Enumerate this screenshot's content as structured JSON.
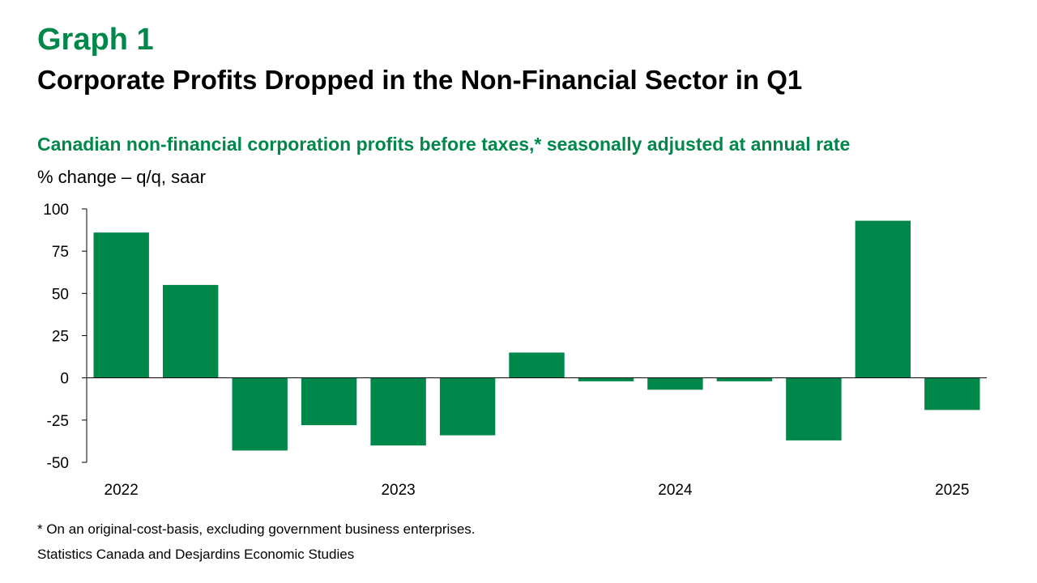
{
  "header": {
    "graph_label": "Graph 1",
    "title": "Corporate Profits Dropped in the Non-Financial Sector in Q1",
    "subtitle": "Canadian non-financial corporation profits before taxes,* seasonally adjusted at annual rate",
    "unit": "% change – q/q, saar"
  },
  "chart_data": {
    "type": "bar",
    "categories": [
      "2022 Q1",
      "2022 Q2",
      "2022 Q3",
      "2022 Q4",
      "2023 Q1",
      "2023 Q2",
      "2023 Q3",
      "2023 Q4",
      "2024 Q1",
      "2024 Q2",
      "2024 Q3",
      "2024 Q4",
      "2025 Q1"
    ],
    "values": [
      86,
      55,
      -43,
      -28,
      -40,
      -34,
      15,
      -2,
      -7,
      -2,
      -37,
      93,
      -19
    ],
    "x_tick_labels": [
      {
        "label": "2022",
        "category_index": 0
      },
      {
        "label": "2023",
        "category_index": 4
      },
      {
        "label": "2024",
        "category_index": 8
      },
      {
        "label": "2025",
        "category_index": 12
      }
    ],
    "ylim": [
      -50,
      100
    ],
    "yticks": [
      100,
      75,
      50,
      25,
      0,
      -25,
      -50
    ],
    "ytick_labels": [
      "100",
      "75",
      "50",
      "25",
      "0",
      "-25",
      "-50"
    ],
    "bar_color": "#00874a",
    "grid": false
  },
  "footer": {
    "footnote": "* On an original-cost-basis, excluding government business enterprises.",
    "source": "Statistics Canada and Desjardins Economic Studies"
  }
}
